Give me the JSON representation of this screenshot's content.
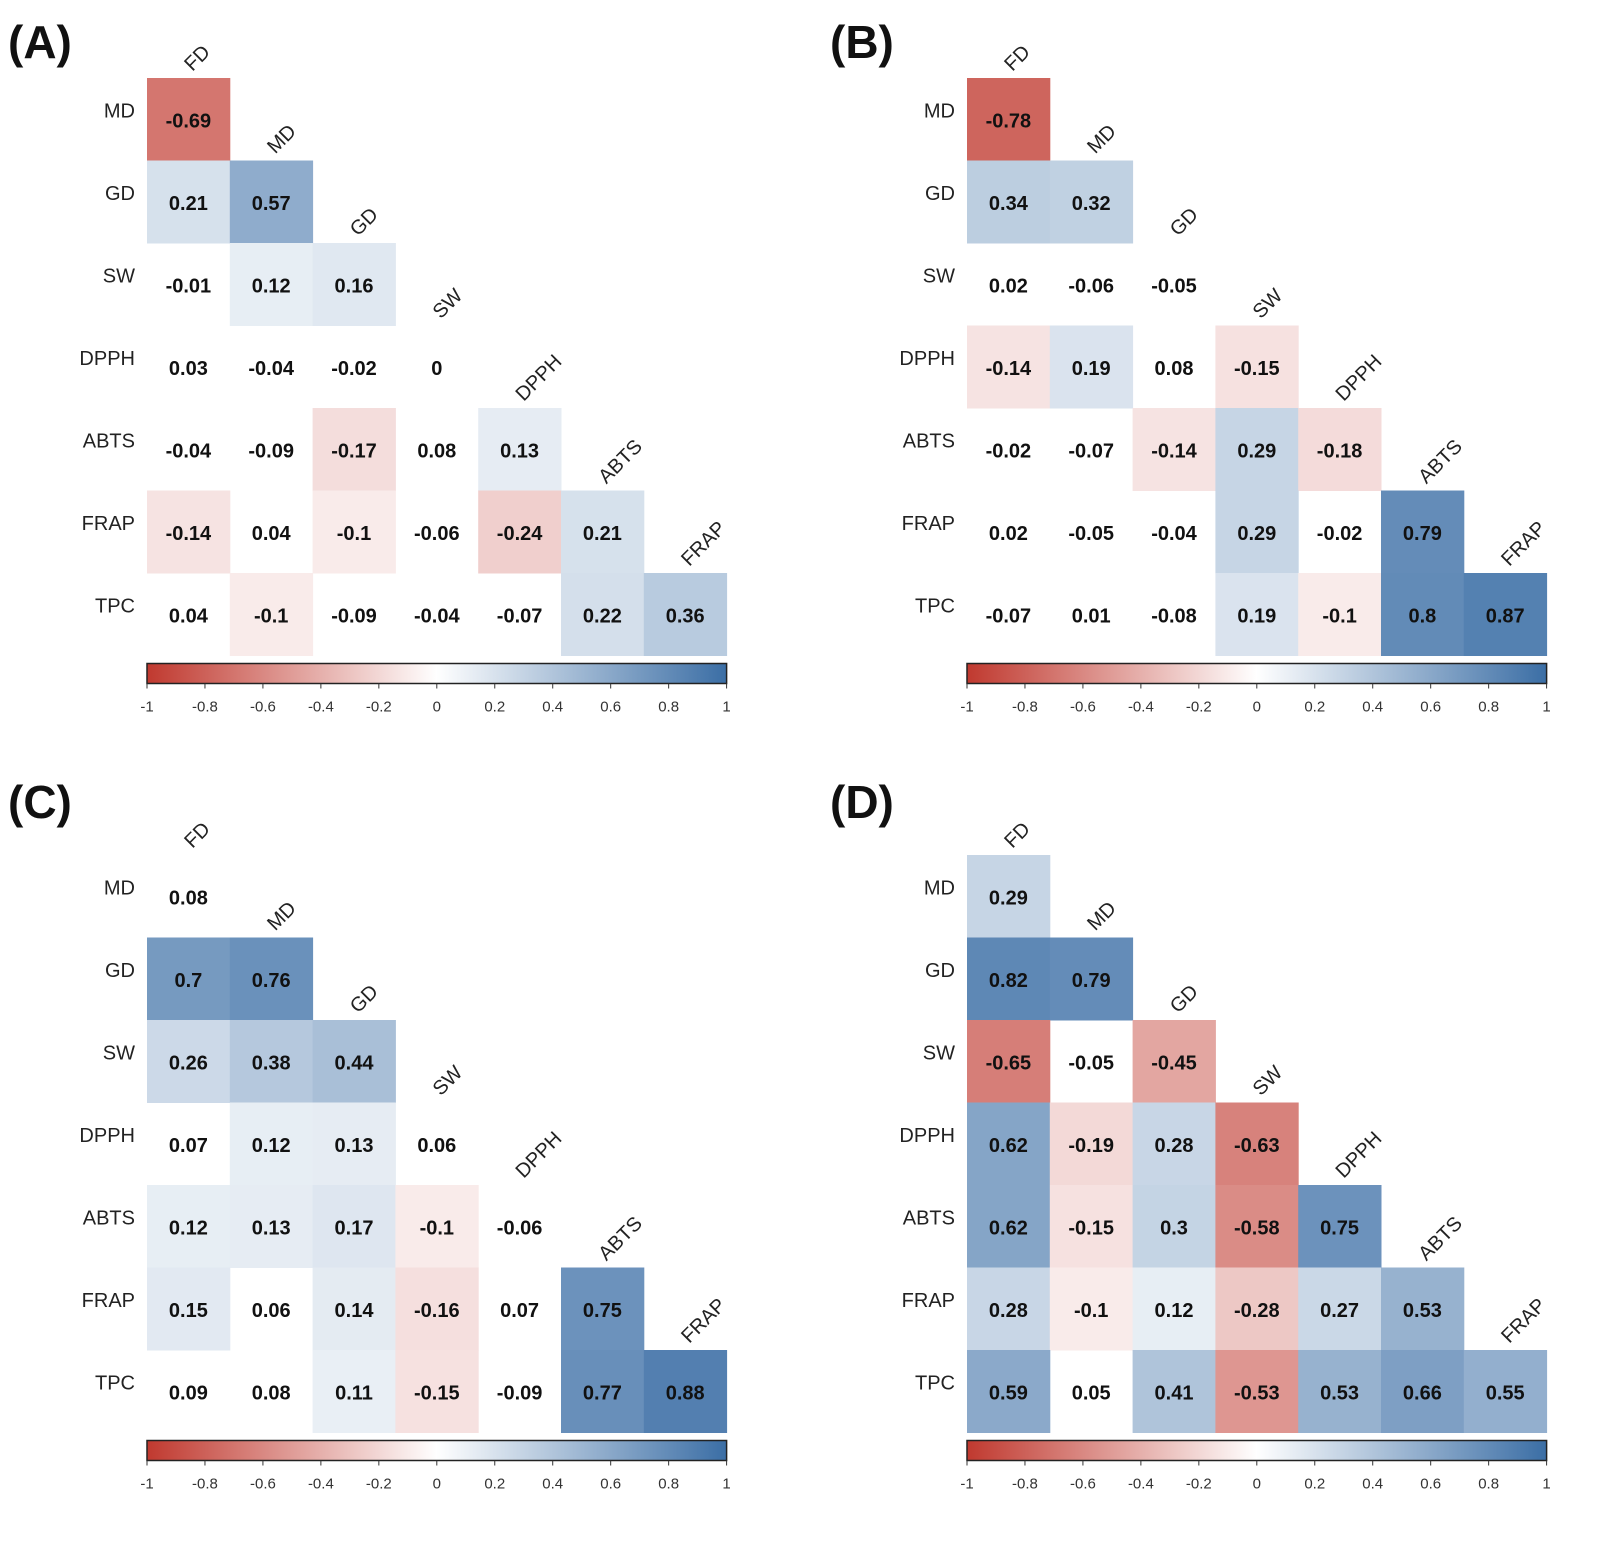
{
  "chart_data": [
    {
      "type": "heatmap",
      "panel": "(A)",
      "row_labels": [
        "MD",
        "GD",
        "SW",
        "DPPH",
        "ABTS",
        "FRAP",
        "TPC"
      ],
      "col_labels": [
        "FD",
        "MD",
        "GD",
        "SW",
        "DPPH",
        "ABTS",
        "FRAP"
      ],
      "cells": [
        [
          "-0.69"
        ],
        [
          "0.21",
          "0.57"
        ],
        [
          "-0.01",
          "0.12",
          "0.16"
        ],
        [
          "0.03",
          "-0.04",
          "-0.02",
          "0"
        ],
        [
          "-0.04",
          "-0.09",
          "-0.17",
          "0.08",
          "0.13"
        ],
        [
          "-0.14",
          "0.04",
          "-0.1",
          "-0.06",
          "-0.24",
          "0.21"
        ],
        [
          "0.04",
          "-0.1",
          "-0.09",
          "-0.04",
          "-0.07",
          "0.22",
          "0.36"
        ]
      ],
      "colorbar": {
        "range": [
          -1,
          1
        ],
        "ticks": [
          "-1",
          "-0.8",
          "-0.6",
          "-0.4",
          "-0.2",
          "0",
          "0.2",
          "0.4",
          "0.6",
          "0.8",
          "1"
        ]
      }
    },
    {
      "type": "heatmap",
      "panel": "(B)",
      "row_labels": [
        "MD",
        "GD",
        "SW",
        "DPPH",
        "ABTS",
        "FRAP",
        "TPC"
      ],
      "col_labels": [
        "FD",
        "MD",
        "GD",
        "SW",
        "DPPH",
        "ABTS",
        "FRAP"
      ],
      "cells": [
        [
          "-0.78"
        ],
        [
          "0.34",
          "0.32"
        ],
        [
          "0.02",
          "-0.06",
          "-0.05"
        ],
        [
          "-0.14",
          "0.19",
          "0.08",
          "-0.15"
        ],
        [
          "-0.02",
          "-0.07",
          "-0.14",
          "0.29",
          "-0.18"
        ],
        [
          "0.02",
          "-0.05",
          "-0.04",
          "0.29",
          "-0.02",
          "0.79"
        ],
        [
          "-0.07",
          "0.01",
          "-0.08",
          "0.19",
          "-0.1",
          "0.8",
          "0.87"
        ]
      ],
      "colorbar": {
        "range": [
          -1,
          1
        ],
        "ticks": [
          "-1",
          "-0.8",
          "-0.6",
          "-0.4",
          "-0.2",
          "0",
          "0.2",
          "0.4",
          "0.6",
          "0.8",
          "1"
        ]
      }
    },
    {
      "type": "heatmap",
      "panel": "(C)",
      "row_labels": [
        "MD",
        "GD",
        "SW",
        "DPPH",
        "ABTS",
        "FRAP",
        "TPC"
      ],
      "col_labels": [
        "FD",
        "MD",
        "GD",
        "SW",
        "DPPH",
        "ABTS",
        "FRAP"
      ],
      "cells": [
        [
          "0.08"
        ],
        [
          "0.7",
          "0.76"
        ],
        [
          "0.26",
          "0.38",
          "0.44"
        ],
        [
          "0.07",
          "0.12",
          "0.13",
          "0.06"
        ],
        [
          "0.12",
          "0.13",
          "0.17",
          "-0.1",
          "-0.06"
        ],
        [
          "0.15",
          "0.06",
          "0.14",
          "-0.16",
          "0.07",
          "0.75"
        ],
        [
          "0.09",
          "0.08",
          "0.11",
          "-0.15",
          "-0.09",
          "0.77",
          "0.88"
        ]
      ],
      "colorbar": {
        "range": [
          -1,
          1
        ],
        "ticks": [
          "-1",
          "-0.8",
          "-0.6",
          "-0.4",
          "-0.2",
          "0",
          "0.2",
          "0.4",
          "0.6",
          "0.8",
          "1"
        ]
      }
    },
    {
      "type": "heatmap",
      "panel": "(D)",
      "row_labels": [
        "MD",
        "GD",
        "SW",
        "DPPH",
        "ABTS",
        "FRAP",
        "TPC"
      ],
      "col_labels": [
        "FD",
        "MD",
        "GD",
        "SW",
        "DPPH",
        "ABTS",
        "FRAP"
      ],
      "cells": [
        [
          "0.29"
        ],
        [
          "0.82",
          "0.79"
        ],
        [
          "-0.65",
          "-0.05",
          "-0.45"
        ],
        [
          "0.62",
          "-0.19",
          "0.28",
          "-0.63"
        ],
        [
          "0.62",
          "-0.15",
          "0.3",
          "-0.58",
          "0.75"
        ],
        [
          "0.28",
          "-0.1",
          "0.12",
          "-0.28",
          "0.27",
          "0.53"
        ],
        [
          "0.59",
          "0.05",
          "0.41",
          "-0.53",
          "0.53",
          "0.66",
          "0.55"
        ]
      ],
      "colorbar": {
        "range": [
          -1,
          1
        ],
        "ticks": [
          "-1",
          "-0.8",
          "-0.6",
          "-0.4",
          "-0.2",
          "0",
          "0.2",
          "0.4",
          "0.6",
          "0.8",
          "1"
        ]
      }
    }
  ],
  "colors": {
    "negative_end": "#c0392f",
    "zero": "#ffffff",
    "positive_end": "#3b6ea5"
  }
}
